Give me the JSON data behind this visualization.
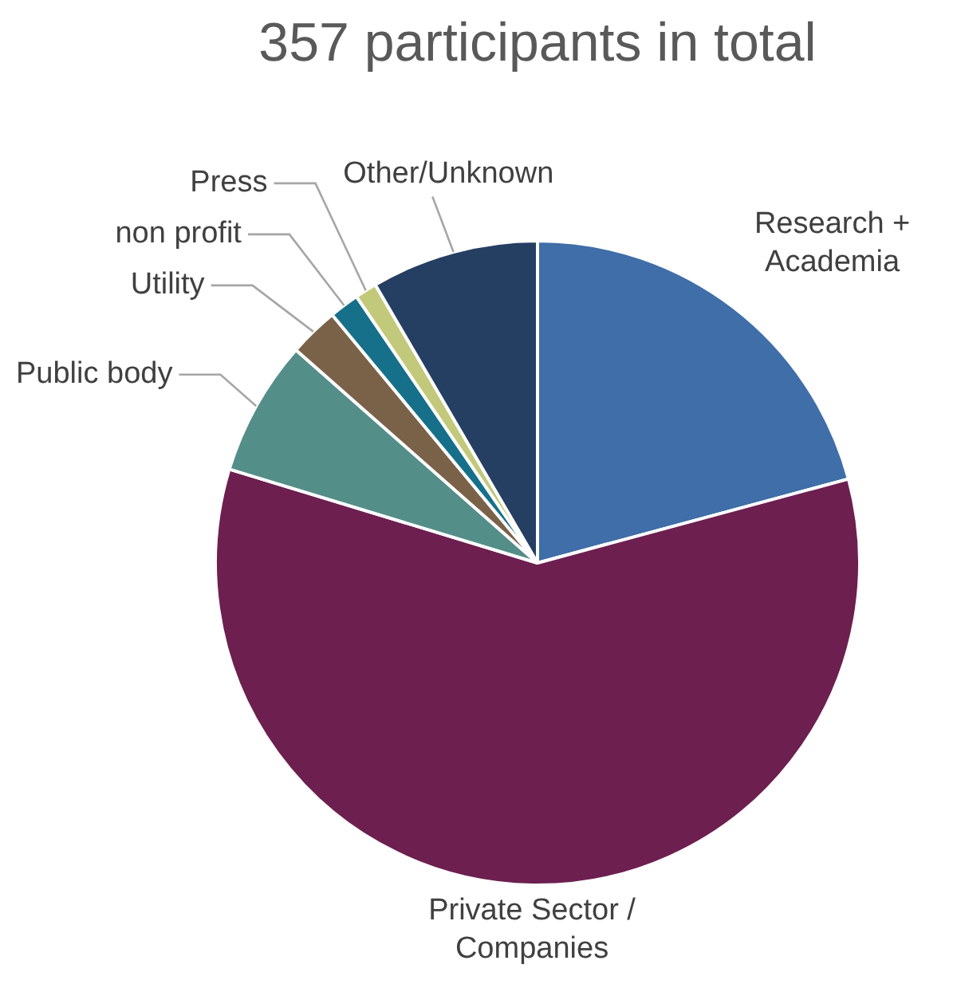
{
  "chart_data": {
    "type": "pie",
    "title": "357 participants in total",
    "categories": [
      "Research + Academia",
      "Private Sector / Companies",
      "Public body",
      "Utility",
      "non profit",
      "Press",
      "Other/Unknown"
    ],
    "values": [
      20.8,
      58.9,
      6.8,
      2.5,
      1.5,
      1.1,
      8.4
    ],
    "colors": [
      "#3f6ea8",
      "#6d1f50",
      "#548e88",
      "#7a6249",
      "#17708a",
      "#c2c97a",
      "#253f63"
    ],
    "legend": false
  }
}
